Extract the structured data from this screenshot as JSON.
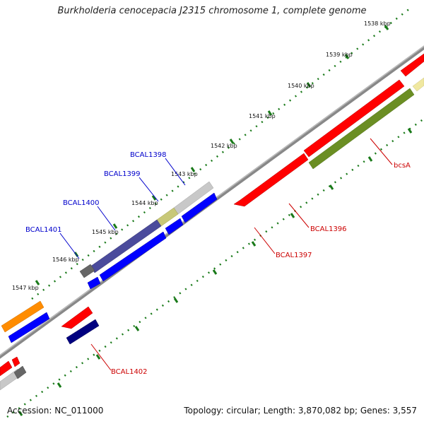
{
  "title": "Burkholderia cenocepacia J2315 chromosome 1, complete genome",
  "footer": {
    "accession": "Accession: NC_011000",
    "summary": "Topology: circular; Length: 3,870,082 bp; Genes: 3,557"
  },
  "ticks": [
    "1538 kbp",
    "1539 kbp",
    "1540 kbp",
    "1541 kbp",
    "1542 kbp",
    "1543 kbp",
    "1544 kbp",
    "1545 kbp",
    "1546 kbp",
    "1547 kbp"
  ],
  "gene_labels": {
    "bcsA": "bcsA",
    "BCAL1396": "BCAL1396",
    "BCAL1397": "BCAL1397",
    "BCAL1398": "BCAL1398",
    "BCAL1399": "BCAL1399",
    "BCAL1400": "BCAL1400",
    "BCAL1401": "BCAL1401",
    "BCAL1402": "BCAL1402"
  },
  "colors": {
    "backbone": "#8c8c8c",
    "red": "#ff0000",
    "blue": "#0000ff",
    "navy": "#000080",
    "slate": "#4b4b9c",
    "olive": "#6b8e23",
    "khaki": "#c8c878",
    "cream": "#f0e8a0",
    "grey": "#666666",
    "silver": "#c8c8c8",
    "orange": "#ff8c00",
    "tick": "#1a7a1a",
    "label_blue": "#0000cc",
    "label_red": "#cc0000"
  }
}
